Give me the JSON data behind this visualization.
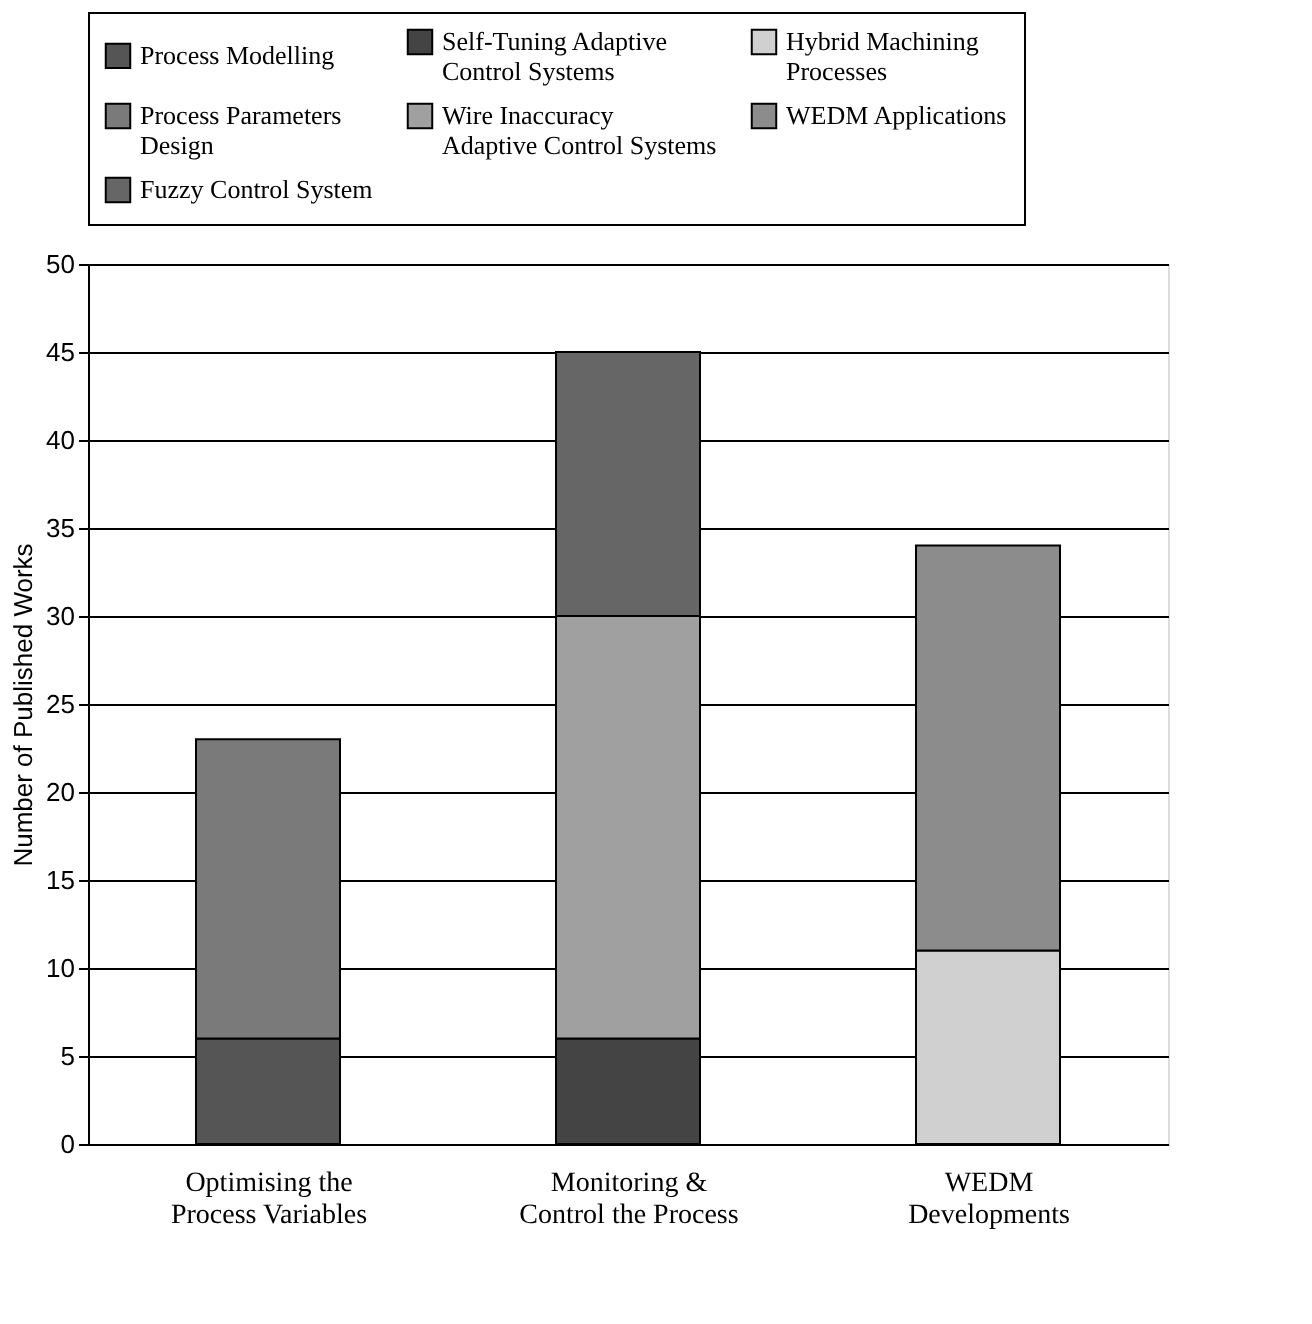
{
  "chart_data": {
    "type": "bar",
    "stacked": true,
    "ylabel": "Number of Published Works",
    "categories": [
      "Optimising the Process Variables",
      "Monitoring & Control the Process",
      "WEDM Developments"
    ],
    "series": [
      {
        "name": "Process Modelling",
        "color": "#555555",
        "values": [
          6,
          null,
          null
        ]
      },
      {
        "name": "Self-Tuning Adaptive Control Systems",
        "color": "#444444",
        "values": [
          null,
          6,
          null
        ]
      },
      {
        "name": "Hybrid Machining Processes",
        "color": "#d0d0d0",
        "values": [
          null,
          null,
          11
        ]
      },
      {
        "name": "Process Parameters Design",
        "color": "#7a7a7a",
        "values": [
          17,
          null,
          null
        ]
      },
      {
        "name": "Wire Inaccuracy Adaptive Control Systems",
        "color": "#a0a0a0",
        "values": [
          null,
          24,
          null
        ]
      },
      {
        "name": "WEDM Applications",
        "color": "#8c8c8c",
        "values": [
          null,
          null,
          23
        ]
      },
      {
        "name": "Fuzzy Control System",
        "color": "#666666",
        "values": [
          null,
          15,
          null
        ]
      }
    ],
    "ylim": [
      0,
      50
    ],
    "yticks": [
      0,
      5,
      10,
      15,
      20,
      25,
      30,
      35,
      40,
      45,
      50
    ],
    "grid": "y",
    "legend": "top"
  }
}
